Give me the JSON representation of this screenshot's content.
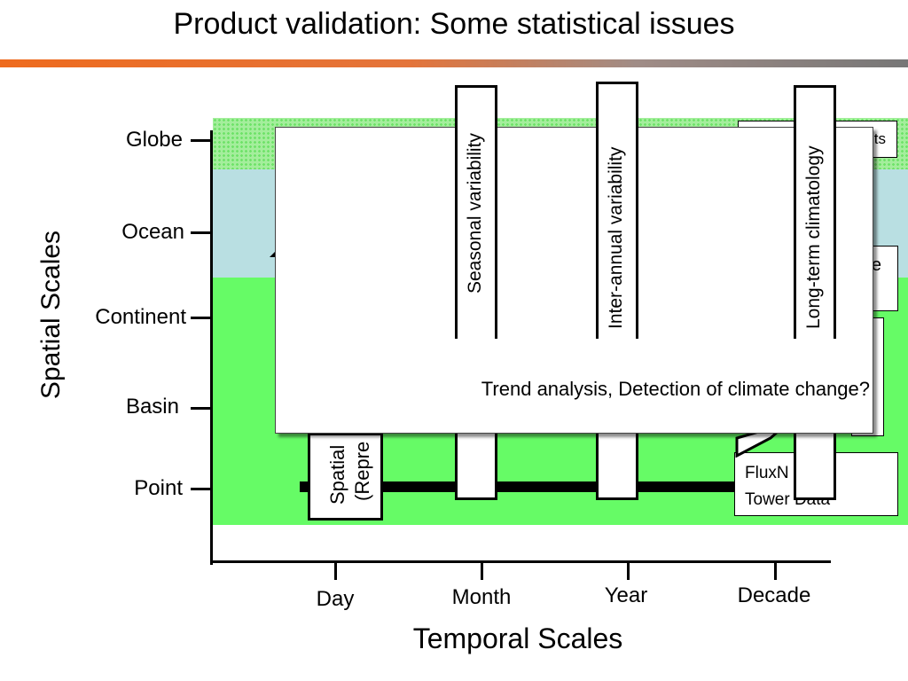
{
  "slide": {
    "title": "Product validation: Some statistical issues"
  },
  "axes": {
    "y_title": "Spatial Scales",
    "x_title": "Temporal Scales",
    "y_ticks": [
      "Globe",
      "Ocean",
      "Continent",
      "Basin",
      "Point"
    ],
    "x_ticks": [
      "Day",
      "Month",
      "Year",
      "Decade"
    ]
  },
  "columns": {
    "seasonal": "Seasonal variability",
    "interannual": "Inter-annual variability",
    "climatology": "Long-term climatology",
    "spatial_line1": "Spatial",
    "spatial_line2": "(Repre"
  },
  "side_boxes": {
    "top_right_fragment": "ts",
    "mid_right_fragment": "e",
    "fluxnet_line1": "FluxN",
    "fluxnet_line2": "Tower Data"
  },
  "popup": {
    "text": "Trend analysis, Detection of climate change?"
  },
  "colors": {
    "globe_band": "#a4ee9c",
    "ocean_band": "#b9dfe2",
    "land_band": "#66fb66",
    "title_rule_start": "#ee6b1e",
    "title_rule_end": "#777777"
  }
}
